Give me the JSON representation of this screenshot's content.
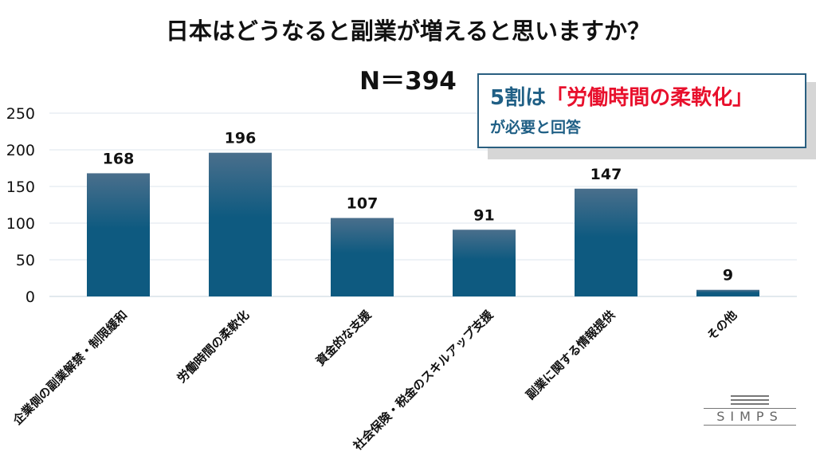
{
  "chart_data": {
    "type": "bar",
    "title": "日本はどうなると副業が増えると思いますか？",
    "subtitle": "N＝394",
    "categories": [
      "企業側の副業解禁・制限緩和",
      "労働時間の柔軟化",
      "資金的な支援",
      "社会保険・税金のスキルアップ支援",
      "副業に関する情報提供",
      "その他"
    ],
    "values": [
      168,
      196,
      107,
      91,
      147,
      9
    ],
    "ylim": [
      0,
      250
    ],
    "yticks": [
      0,
      50,
      100,
      150,
      200,
      250
    ],
    "grid": true,
    "bar_color_top": "#4a6f8c",
    "bar_color_bottom": "#0e5a80"
  },
  "callout": {
    "prefix": "5割は",
    "highlight": "「労働時間の柔軟化」",
    "line2": "が必要と回答"
  },
  "logo": {
    "text": "SIMPS"
  }
}
